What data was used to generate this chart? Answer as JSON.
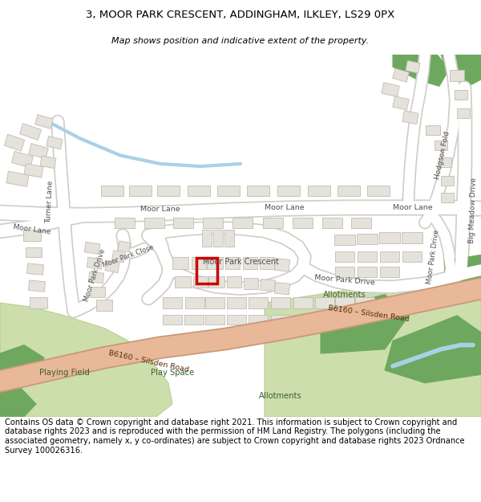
{
  "title_line1": "3, MOOR PARK CRESCENT, ADDINGHAM, ILKLEY, LS29 0PX",
  "title_line2": "Map shows position and indicative extent of the property.",
  "footer_text": "Contains OS data © Crown copyright and database right 2021. This information is subject to Crown copyright and database rights 2023 and is reproduced with the permission of HM Land Registry. The polygons (including the associated geometry, namely x, y co-ordinates) are subject to Crown copyright and database rights 2023 Ordnance Survey 100026316.",
  "map_bg": "#f4f2ed",
  "road_color": "#ffffff",
  "road_stroke": "#d0cec8",
  "building_fill": "#e4e2da",
  "building_stroke": "#c0bdb4",
  "green_light": "#cddead",
  "green_dark": "#6da85e",
  "road_b6160_color": "#e8b898",
  "road_b6160_stroke": "#c89878",
  "water_color": "#aad0e8",
  "highlight_color": "#cc0000",
  "fig_width": 6.0,
  "fig_height": 6.25
}
